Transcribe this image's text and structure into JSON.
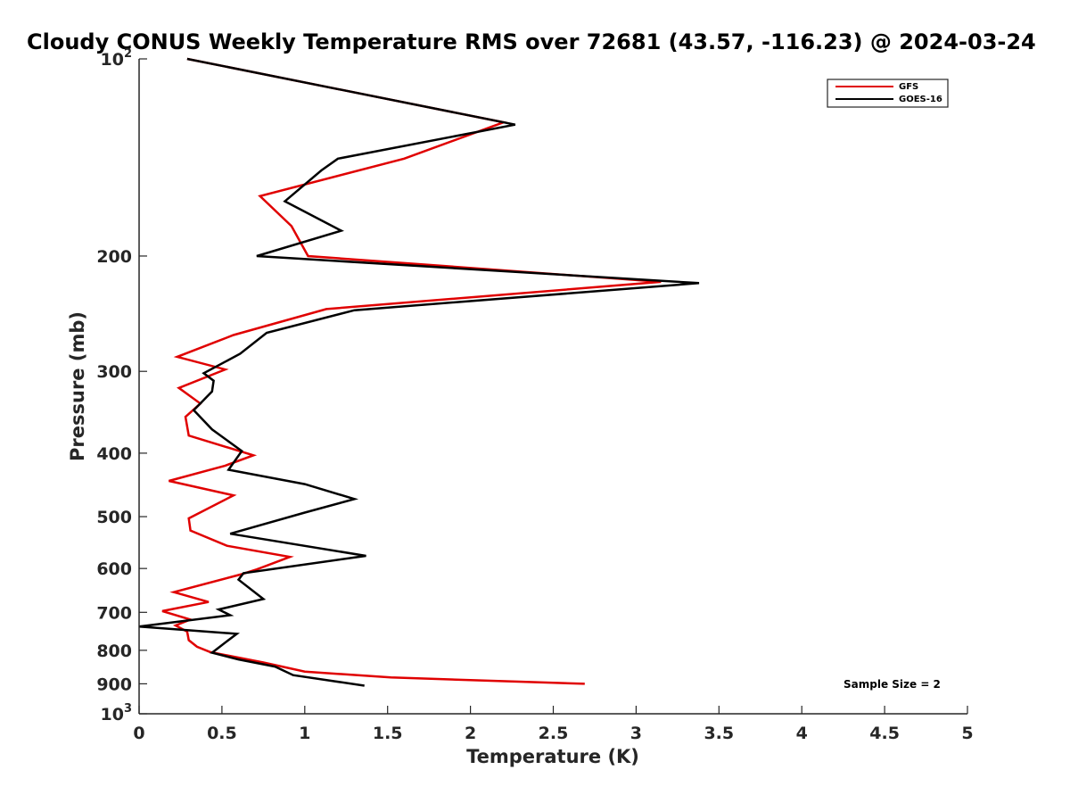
{
  "chart_data": {
    "type": "line",
    "title": "Cloudy CONUS Weekly Temperature RMS over 72681 (43.57, -116.23) @ 2024-03-24",
    "xlabel": "Temperature (K)",
    "ylabel": "Pressure (mb)",
    "xlim": [
      0,
      5
    ],
    "ylim": [
      100,
      1000
    ],
    "y_scale": "log",
    "y_reversed": true,
    "grid": false,
    "legend_position": "top-right",
    "x_ticks": [
      "0",
      "0.5",
      "1",
      "1.5",
      "2",
      "2.5",
      "3",
      "3.5",
      "4",
      "4.5",
      "5"
    ],
    "y_ticks": [
      {
        "value": 100,
        "label": "10",
        "sup": "2"
      },
      {
        "value": 200,
        "label": "200",
        "sup": ""
      },
      {
        "value": 300,
        "label": "300",
        "sup": ""
      },
      {
        "value": 400,
        "label": "400",
        "sup": ""
      },
      {
        "value": 500,
        "label": "500",
        "sup": ""
      },
      {
        "value": 600,
        "label": "600",
        "sup": ""
      },
      {
        "value": 700,
        "label": "700",
        "sup": ""
      },
      {
        "value": 800,
        "label": "800",
        "sup": ""
      },
      {
        "value": 900,
        "label": "900",
        "sup": ""
      },
      {
        "value": 1000,
        "label": "10",
        "sup": "3"
      }
    ],
    "series": [
      {
        "name": "GFS",
        "color": "#e00000",
        "points": [
          [
            0.29,
            100
          ],
          [
            2.2,
            125
          ],
          [
            1.6,
            142
          ],
          [
            0.73,
            162
          ],
          [
            0.92,
            180
          ],
          [
            1.02,
            200
          ],
          [
            3.15,
            219
          ],
          [
            1.13,
            241
          ],
          [
            0.57,
            264
          ],
          [
            0.23,
            285
          ],
          [
            0.52,
            298
          ],
          [
            0.24,
            318
          ],
          [
            0.37,
            336
          ],
          [
            0.28,
            352
          ],
          [
            0.3,
            376
          ],
          [
            0.69,
            403
          ],
          [
            0.52,
            418
          ],
          [
            0.18,
            441
          ],
          [
            0.57,
            464
          ],
          [
            0.3,
            503
          ],
          [
            0.31,
            525
          ],
          [
            0.53,
            554
          ],
          [
            0.91,
            576
          ],
          [
            0.71,
            602
          ],
          [
            0.62,
            612
          ],
          [
            0.21,
            652
          ],
          [
            0.42,
            675
          ],
          [
            0.14,
            697
          ],
          [
            0.31,
            718
          ],
          [
            0.22,
            733
          ],
          [
            0.29,
            749
          ],
          [
            0.3,
            772
          ],
          [
            0.35,
            790
          ],
          [
            0.43,
            805
          ],
          [
            0.75,
            835
          ],
          [
            1.0,
            862
          ],
          [
            1.52,
            880
          ],
          [
            2.69,
            900
          ]
        ]
      },
      {
        "name": "GOES-16",
        "color": "#000000",
        "points": [
          [
            0.29,
            100
          ],
          [
            2.27,
            126
          ],
          [
            1.2,
            142
          ],
          [
            1.1,
            148
          ],
          [
            0.88,
            165
          ],
          [
            1.22,
            183
          ],
          [
            0.71,
            200
          ],
          [
            3.38,
            220
          ],
          [
            1.3,
            242
          ],
          [
            0.77,
            262
          ],
          [
            0.61,
            282
          ],
          [
            0.39,
            302
          ],
          [
            0.45,
            310
          ],
          [
            0.44,
            322
          ],
          [
            0.33,
            344
          ],
          [
            0.44,
            368
          ],
          [
            0.62,
            397
          ],
          [
            0.54,
            424
          ],
          [
            1.0,
            446
          ],
          [
            1.3,
            470
          ],
          [
            1.0,
            493
          ],
          [
            0.55,
            531
          ],
          [
            1.37,
            574
          ],
          [
            0.63,
            610
          ],
          [
            0.6,
            624
          ],
          [
            0.75,
            668
          ],
          [
            0.48,
            693
          ],
          [
            0.55,
            707
          ],
          [
            0.0,
            736
          ],
          [
            0.59,
            755
          ],
          [
            0.53,
            775
          ],
          [
            0.44,
            807
          ],
          [
            0.6,
            826
          ],
          [
            0.82,
            847
          ],
          [
            0.93,
            873
          ],
          [
            1.36,
            906
          ]
        ]
      }
    ],
    "annotation": "Sample Size = 2"
  }
}
